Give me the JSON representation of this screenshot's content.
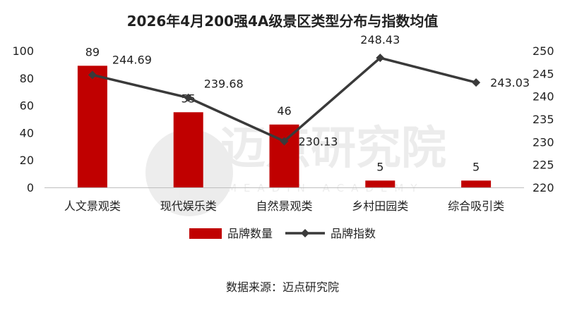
{
  "chart_data": {
    "type": "bar",
    "title": "2026年4月200强4A级景区类型分布与指数均值",
    "categories": [
      "人文景观类",
      "现代娱乐类",
      "自然景观类",
      "乡村田园类",
      "综合吸引类"
    ],
    "series": [
      {
        "name": "品牌数量",
        "type": "bar",
        "axis": "left",
        "values": [
          89,
          55,
          46,
          5,
          5
        ],
        "color": "#C00000"
      },
      {
        "name": "品牌指数",
        "type": "line",
        "axis": "right",
        "values": [
          244.69,
          239.68,
          230.13,
          248.43,
          243.03
        ],
        "color": "#3A3A3A"
      }
    ],
    "y_left": {
      "min": 0,
      "max": 100,
      "ticks": [
        0,
        20,
        40,
        60,
        80,
        100
      ]
    },
    "y_right": {
      "min": 220,
      "max": 250,
      "ticks": [
        220,
        225,
        230,
        235,
        240,
        245,
        250
      ]
    },
    "grid": false,
    "legend_position": "bottom",
    "source": "数据来源：迈点研究院",
    "watermark": "迈点研究院 MEADIN ACADEMY"
  }
}
